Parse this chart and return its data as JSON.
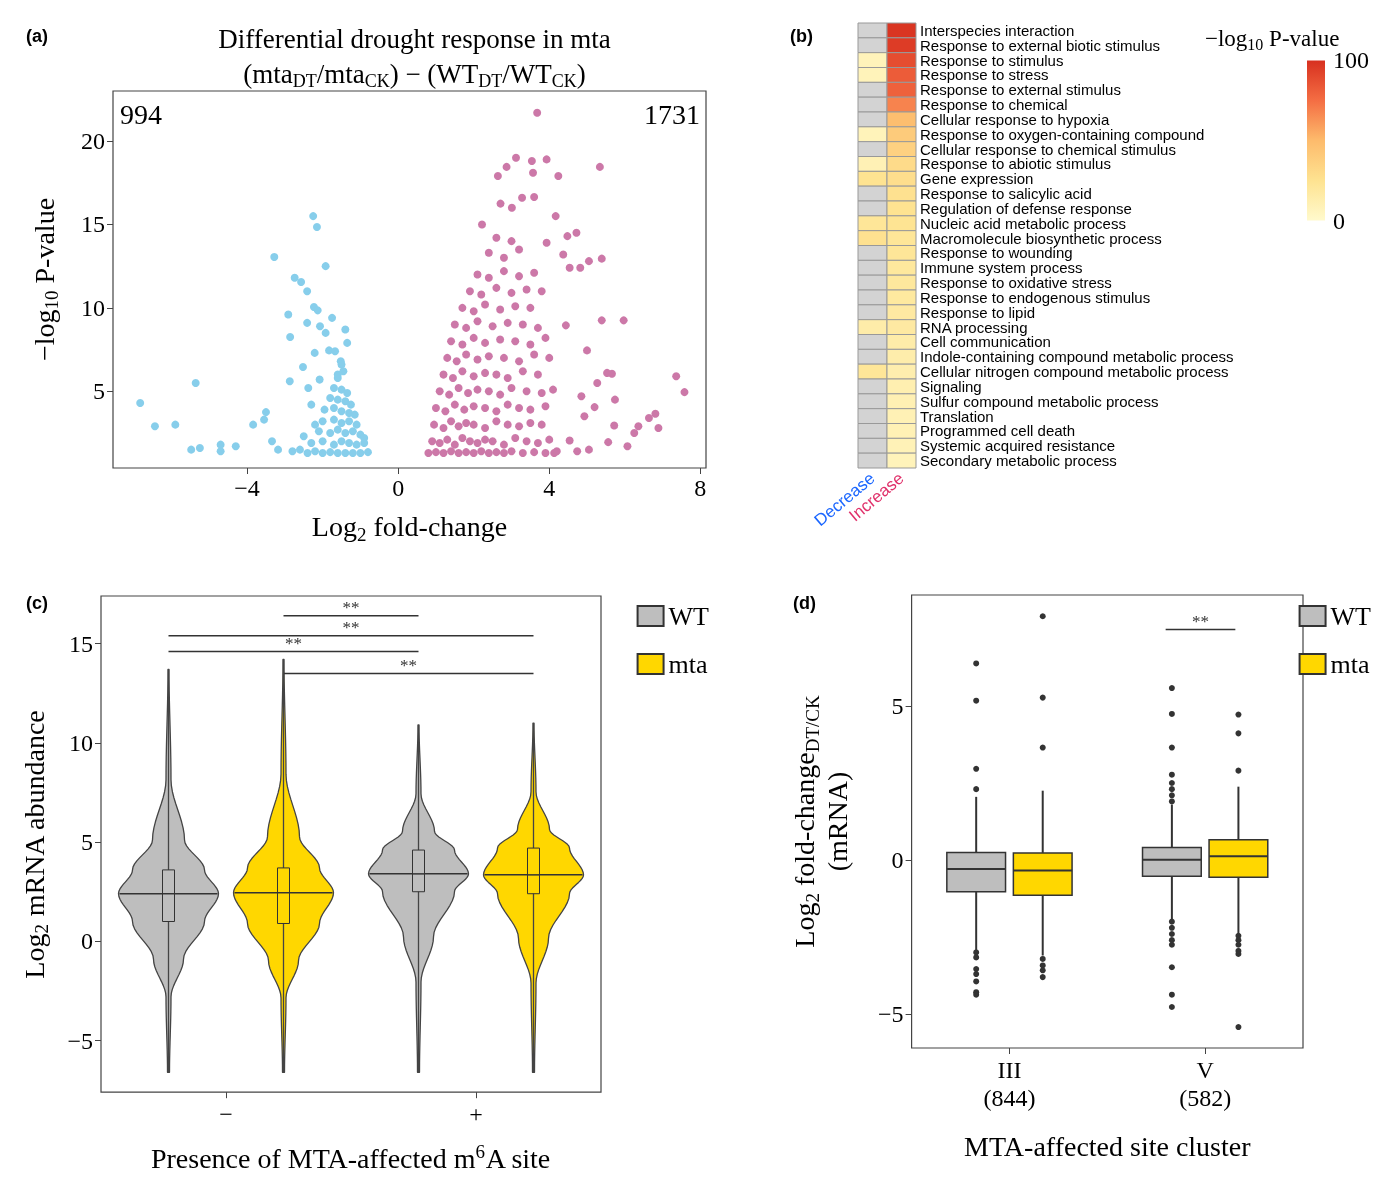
{
  "chart_data": [
    {
      "type": "scatter",
      "title": "Differential drought response in mta",
      "subtitle": "(mta$_{DT}$/mta$_{CK}$) − (WT$_{DT}$/WT$_{CK}$)",
      "xlabel": "Log$_{2}$ fold-change",
      "ylabel": "−log$_{10}$ P-value",
      "annotations": [
        "(a)",
        "994",
        "1731"
      ],
      "xlim": [
        -7.55,
        8.15
      ],
      "ylim": [
        0.4,
        23
      ],
      "xticks": [
        -4,
        0,
        4,
        8
      ],
      "yticks": [
        5,
        10,
        15,
        20
      ],
      "grid": false,
      "marker": "circle",
      "series": [
        {
          "color": "#87ceeb",
          "x": [
            -6.83,
            -6.44,
            -5.9,
            -5.36,
            -5.48,
            -5.25,
            -4.7,
            -4.7,
            -4.3,
            -3.84,
            -3.55,
            -3.5,
            -3.34,
            -3.18,
            -2.25,
            -2.15,
            -3.28,
            -1.92,
            -2.74,
            -2.57,
            -2.41,
            -2.23,
            -2.13,
            -2.91,
            -1.75,
            -2.41,
            -2.07,
            -1.4,
            -1.92,
            -2.86,
            -1.35,
            -1.83,
            -1.67,
            -2.21,
            -1.52,
            -2.52,
            -2.87,
            -2.38,
            -2.08,
            -2.4,
            -2.2,
            -2.0,
            -1.8,
            -1.6,
            -1.4,
            -1.2,
            -1.0,
            -0.8,
            -2.3,
            -2.0,
            -1.7,
            -1.5,
            -1.3,
            -1.1,
            -0.9,
            -2.1,
            -1.8,
            -1.6,
            -1.4,
            -1.2,
            -1.0,
            -0.9,
            -2.0,
            -1.7,
            -1.5,
            -1.3,
            -1.1,
            -1.95,
            -1.7,
            -1.5,
            -1.3,
            -1.15,
            -1.8,
            -1.6,
            -1.4,
            -1.25,
            -1.7,
            -1.5,
            -1.35,
            -1.6,
            -1.45,
            -1.5,
            -1.6,
            -2.6,
            -2.8,
            -2.5,
            -2.2,
            -2.3
          ],
          "values": [
            4.3,
            2.9,
            3.0,
            5.5,
            1.5,
            1.6,
            1.8,
            1.4,
            1.7,
            3.0,
            3.3,
            3.75,
            2.0,
            1.5,
            15.5,
            14.85,
            13.05,
            12.5,
            11.8,
            11.55,
            11.0,
            10.05,
            9.85,
            9.6,
            9.4,
            9.1,
            8.9,
            8.7,
            8.5,
            8.25,
            7.9,
            7.45,
            7.4,
            7.3,
            6.8,
            6.45,
            5.6,
            5.2,
            5.7,
            1.3,
            1.4,
            1.3,
            1.35,
            1.3,
            1.3,
            1.3,
            1.3,
            1.35,
            1.9,
            2.0,
            1.8,
            2.0,
            1.9,
            1.8,
            1.9,
            2.6,
            2.5,
            2.7,
            2.5,
            2.6,
            2.4,
            2.2,
            3.2,
            3.3,
            3.1,
            3.2,
            3.0,
            3.9,
            4.0,
            3.8,
            3.7,
            3.6,
            4.6,
            4.5,
            4.4,
            4.2,
            5.2,
            5.1,
            4.9,
            5.8,
            6.2,
            6.6,
            6.0,
            1.5,
            1.4,
            2.3,
            3.0,
            4.2
          ]
        },
        {
          "color": "#cc78a8",
          "x": [
            3.68,
            3.12,
            3.54,
            3.93,
            2.87,
            2.64,
            5.34,
            4.24,
            3.57,
            3.28,
            3.6,
            2.71,
            4.17,
            3.01,
            2.22,
            4.72,
            4.48,
            3.93,
            4.37,
            5.39,
            5.05,
            4.54,
            4.82,
            5.39,
            5.97,
            4.44,
            5.0,
            5.53,
            5.66,
            7.36,
            7.58,
            5.27,
            4.85,
            5.74,
            5.2,
            4.93,
            5.72,
            6.81,
            6.64,
            6.89,
            6.25,
            6.36,
            6.07,
            5.56,
            5.05,
            4.74,
            4.13,
            4.54,
            0.8,
            1.0,
            1.2,
            1.4,
            1.6,
            1.8,
            2.0,
            2.2,
            2.4,
            2.6,
            2.8,
            3.0,
            3.3,
            3.6,
            3.9,
            4.2,
            0.9,
            1.1,
            1.3,
            1.5,
            1.7,
            1.9,
            2.1,
            2.3,
            2.5,
            2.8,
            3.1,
            3.4,
            3.7,
            4.0,
            0.95,
            1.2,
            1.4,
            1.6,
            1.8,
            2.0,
            2.3,
            2.6,
            2.9,
            3.2,
            3.5,
            3.8,
            1.0,
            1.25,
            1.5,
            1.75,
            2.0,
            2.3,
            2.6,
            2.9,
            3.2,
            3.5,
            3.9,
            1.1,
            1.35,
            1.6,
            1.85,
            2.1,
            2.4,
            2.7,
            3.0,
            3.4,
            3.8,
            4.1,
            1.2,
            1.45,
            1.7,
            2.0,
            2.3,
            2.6,
            2.9,
            3.3,
            3.7,
            1.3,
            1.55,
            1.8,
            2.1,
            2.4,
            2.8,
            3.2,
            3.6,
            4.0,
            1.4,
            1.7,
            2.0,
            2.3,
            2.7,
            3.1,
            3.5,
            3.9,
            1.5,
            1.8,
            2.1,
            2.5,
            2.9,
            3.3,
            3.7,
            1.7,
            2.0,
            2.3,
            2.7,
            3.1,
            3.5,
            1.9,
            2.2,
            2.6,
            3.0,
            3.4,
            3.8,
            2.1,
            2.4,
            2.8,
            3.2,
            3.6,
            2.4,
            2.8,
            3.2,
            2.6,
            3.0
          ],
          "values": [
            21.7,
            19.0,
            18.8,
            18.9,
            18.45,
            17.9,
            18.45,
            17.9,
            18.1,
            16.6,
            16.65,
            16.25,
            15.5,
            16.0,
            15.0,
            14.5,
            14.3,
            13.9,
            13.2,
            12.95,
            12.8,
            12.4,
            12.4,
            9.25,
            9.25,
            8.95,
            7.45,
            6.1,
            6.05,
            5.9,
            4.95,
            5.5,
            4.7,
            4.5,
            4.05,
            3.5,
            2.95,
            3.65,
            3.4,
            2.8,
            2.5,
            2.9,
            1.7,
            1.95,
            1.5,
            1.4,
            1.3,
            2.05,
            1.3,
            1.35,
            1.3,
            1.4,
            1.3,
            1.35,
            1.3,
            1.4,
            1.3,
            1.35,
            1.3,
            1.4,
            1.3,
            1.35,
            1.3,
            1.4,
            2.0,
            1.9,
            2.1,
            1.8,
            2.2,
            2.0,
            1.9,
            2.1,
            2.0,
            1.8,
            2.2,
            2.0,
            1.9,
            2.1,
            3.0,
            2.8,
            3.2,
            2.9,
            3.1,
            3.0,
            2.8,
            3.2,
            3.0,
            2.9,
            3.1,
            3.0,
            4.0,
            3.8,
            4.2,
            3.9,
            4.1,
            4.0,
            3.8,
            4.2,
            4.0,
            3.9,
            4.1,
            5.0,
            4.8,
            5.2,
            4.9,
            5.1,
            5.0,
            4.8,
            5.2,
            5.0,
            4.9,
            5.1,
            6.0,
            5.8,
            6.2,
            5.9,
            6.1,
            6.0,
            5.8,
            6.2,
            6.0,
            7.0,
            6.8,
            7.2,
            6.9,
            7.1,
            7.0,
            6.8,
            7.2,
            7.0,
            8.0,
            7.8,
            8.2,
            7.9,
            8.1,
            8.0,
            7.8,
            8.2,
            9.0,
            8.8,
            9.2,
            8.9,
            9.1,
            9.0,
            8.8,
            10.0,
            9.8,
            10.2,
            9.9,
            10.1,
            10.0,
            11.0,
            10.8,
            11.2,
            10.9,
            11.1,
            11.0,
            12.0,
            11.8,
            12.2,
            11.9,
            12.1,
            13.3,
            13.0,
            13.5,
            14.2,
            14.0
          ]
        }
      ]
    },
    {
      "type": "heatmap",
      "clabel": "−log$_{10}$ P-value",
      "annotations": [
        "(b)"
      ],
      "categories": [
        "Decrease",
        "Increase"
      ],
      "y_categories": [
        "Interspecies interaction",
        "Response to external biotic stimulus",
        "Response to stimulus",
        "Response to stress",
        "Response to external stimulus",
        "Response to chemical",
        "Cellular response to hypoxia",
        "Response to oxygen-containing compound",
        "Cellular response to chemical stimulus",
        "Response to abiotic stimulus",
        "Gene expression",
        "Response to salicylic acid",
        "Regulation of defense response",
        "Nucleic acid metabolic process",
        "Macromolecule biosynthetic process",
        "Response to wounding",
        "Immune system process",
        "Response to oxidative stress",
        "Response to endogenous stimulus",
        "Response to lipid",
        "RNA processing",
        "Cell communication",
        "Indole-containing compound metabolic process",
        "Cellular nitrogen compound metabolic process",
        "Signaling",
        "Sulfur compound metabolic process",
        "Translation",
        "Programmed cell death",
        "Systemic acquired resistance",
        "Secondary metabolic process"
      ],
      "cells": [
        [
          null,
          98
        ],
        [
          null,
          95
        ],
        [
          8,
          88
        ],
        [
          8,
          82
        ],
        [
          null,
          80
        ],
        [
          null,
          68
        ],
        [
          null,
          48
        ],
        [
          8,
          40
        ],
        [
          null,
          36
        ],
        [
          10,
          30
        ],
        [
          25,
          28
        ],
        [
          null,
          26
        ],
        [
          null,
          25
        ],
        [
          22,
          24
        ],
        [
          26,
          22
        ],
        [
          null,
          22
        ],
        [
          null,
          20
        ],
        [
          null,
          20
        ],
        [
          null,
          19
        ],
        [
          null,
          18
        ],
        [
          15,
          18
        ],
        [
          null,
          15
        ],
        [
          null,
          14
        ],
        [
          22,
          13
        ],
        [
          null,
          12
        ],
        [
          null,
          11
        ],
        [
          null,
          10
        ],
        [
          null,
          10
        ],
        [
          null,
          9
        ],
        [
          null,
          8
        ]
      ],
      "clim": [
        0,
        100
      ],
      "cticks": [
        0,
        100
      ]
    },
    {
      "type": "box",
      "xlabel": "Presence of MTA-affected m$^{6}$A site",
      "ylabel": "Log$_{2}$ mRNA abundance",
      "categories": [
        "−",
        "+"
      ],
      "ylim": [
        -7.6,
        17.4
      ],
      "yticks": [
        -5,
        0,
        5,
        10,
        15
      ],
      "grid": false,
      "legend": "top right",
      "annotations": [
        "(c)",
        "**",
        "**",
        "**",
        "**"
      ],
      "series": [
        {
          "name": "WT",
          "color": "#bebebe",
          "boxes": [
            {
              "low": -6.6,
              "q1": 1.0,
              "median": 2.4,
              "q3": 3.6,
              "high": 13.7
            },
            {
              "low": -6.6,
              "q1": 2.5,
              "median": 3.4,
              "q3": 4.6,
              "high": 10.9
            }
          ]
        },
        {
          "name": "mta",
          "color": "#ffd700",
          "boxes": [
            {
              "low": -6.6,
              "q1": 0.9,
              "median": 2.45,
              "q3": 3.7,
              "high": 14.2
            },
            {
              "low": -6.6,
              "q1": 2.4,
              "median": 3.35,
              "q3": 4.7,
              "high": 11.0
            }
          ]
        }
      ]
    },
    {
      "type": "box",
      "xlabel": "MTA-affected site cluster",
      "ylabel": "Log$_{2}$ fold-change$_{DT/CK}$\n(mRNA)",
      "categories": [
        "III\n(844)",
        "V\n(582)"
      ],
      "ylim": [
        -6.1,
        8.6
      ],
      "yticks": [
        -5,
        0,
        5
      ],
      "grid": false,
      "legend": "top right",
      "annotations": [
        "(d)",
        "**"
      ],
      "series": [
        {
          "name": "WT",
          "color": "#bebebe",
          "boxes": [
            {
              "low": -2.95,
              "q1": -1.03,
              "median": -0.29,
              "q3": 0.24,
              "high": 2.05,
              "outliers": [
                6.38,
                5.17,
                2.96,
                2.3,
                -3.0,
                -3.16,
                -3.54,
                -3.7,
                -3.94,
                -4.29,
                -4.37
              ]
            },
            {
              "low": -1.93,
              "q1": -0.53,
              "median": 0.01,
              "q3": 0.41,
              "high": 1.8,
              "outliers": [
                5.58,
                4.74,
                3.65,
                2.77,
                2.5,
                2.3,
                2.1,
                1.9,
                -2.0,
                -2.2,
                -2.4,
                -2.6,
                -2.75,
                -3.48,
                -4.37,
                -4.77
              ]
            }
          ]
        },
        {
          "name": "mta",
          "color": "#ffd700",
          "boxes": [
            {
              "low": -3.1,
              "q1": -1.14,
              "median": -0.34,
              "q3": 0.23,
              "high": 2.25,
              "outliers": [
                7.91,
                5.27,
                3.65,
                -3.21,
                -3.42,
                -3.58,
                -3.8
              ]
            },
            {
              "low": -2.41,
              "q1": -0.56,
              "median": 0.12,
              "q3": 0.66,
              "high": 2.38,
              "outliers": [
                4.72,
                4.11,
                2.9,
                -2.46,
                -2.6,
                -2.75,
                -2.95,
                -3.05,
                -5.42
              ]
            }
          ]
        }
      ]
    }
  ]
}
